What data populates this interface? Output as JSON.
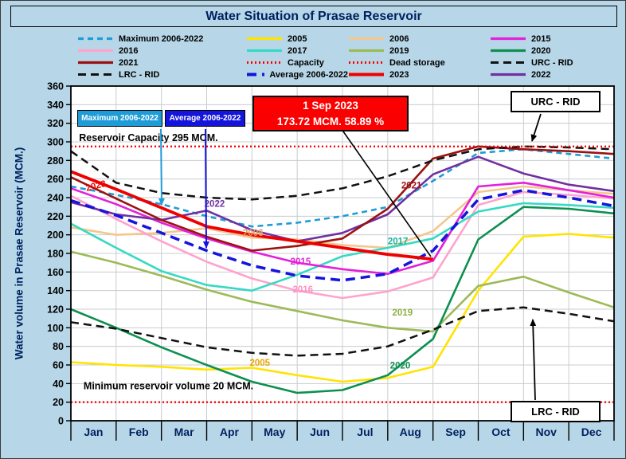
{
  "annotations": {
    "maximum_box": "Maximum 2006-2022",
    "average_box": "Average 2006-2022",
    "current": {
      "date": "1 Sep 2023",
      "value": "173.72 MCM. 58.89 %"
    },
    "urc_label": "URC - RID",
    "lrc_label": "LRC - RID",
    "notes": [
      {
        "text": "Reservoir Capacity 295 MCM.",
        "month": 0.18,
        "mcm": 301
      },
      {
        "text": "Minimum reservoir volume 20 MCM.",
        "month": 0.28,
        "mcm": 34
      }
    ]
  },
  "chart_data": {
    "type": "line",
    "title": "Water Situation of Prasae Reservoir",
    "ylabel": "Water volume in Prasae Reservoir (MCM.)",
    "ylim": [
      0,
      360
    ],
    "y_tick_step": 20,
    "grid": true,
    "x_categories": [
      "Jan",
      "Feb",
      "Mar",
      "Apr",
      "May",
      "Jun",
      "Jul",
      "Aug",
      "Sep",
      "Oct",
      "Nov",
      "Dec"
    ],
    "legend_order": [
      "Maximum 2006-2022",
      "2005",
      "2006",
      "2015",
      "2016",
      "2017",
      "2019",
      "2020",
      "2021",
      "Capacity",
      "Dead storage",
      "URC - RID",
      "LRC - RID",
      "Average 2006-2022",
      "2023",
      "2022"
    ],
    "series": [
      {
        "name": "2005",
        "color": "#ffe400",
        "width": 2.6,
        "values": [
          63,
          60,
          58,
          55,
          57,
          49,
          42,
          46,
          58,
          140,
          198,
          201,
          197
        ]
      },
      {
        "name": "2006",
        "color": "#f3c78e",
        "width": 2.6,
        "values": [
          208,
          200,
          202,
          207,
          197,
          195,
          189,
          186,
          204,
          246,
          252,
          248,
          244
        ]
      },
      {
        "name": "2016",
        "color": "#ffa3cd",
        "width": 2.6,
        "values": [
          242,
          217,
          193,
          171,
          153,
          140,
          132,
          139,
          154,
          232,
          246,
          243,
          239
        ]
      },
      {
        "name": "2017",
        "color": "#36d9c4",
        "width": 2.6,
        "values": [
          212,
          186,
          161,
          146,
          140,
          157,
          177,
          186,
          196,
          225,
          234,
          232,
          229
        ]
      },
      {
        "name": "2019",
        "color": "#9cba58",
        "width": 2.6,
        "values": [
          182,
          170,
          156,
          141,
          128,
          118,
          108,
          100,
          96,
          145,
          155,
          138,
          122
        ]
      },
      {
        "name": "2020",
        "color": "#0e8f50",
        "width": 2.6,
        "values": [
          120,
          100,
          79,
          60,
          42,
          30,
          33,
          49,
          88,
          195,
          230,
          228,
          223
        ]
      },
      {
        "name": "Maximum 2006-2022",
        "color": "#1e9cd7",
        "dash": "7 5",
        "width": 2.6,
        "values": [
          252,
          243,
          233,
          220,
          209,
          213,
          220,
          230,
          258,
          288,
          292,
          287,
          282
        ]
      },
      {
        "name": "2015",
        "color": "#e321d9",
        "width": 2.6,
        "values": [
          250,
          233,
          213,
          196,
          182,
          170,
          163,
          158,
          172,
          252,
          256,
          248,
          240
        ]
      },
      {
        "name": "2022",
        "color": "#7030a0",
        "width": 2.6,
        "values": [
          235,
          222,
          216,
          226,
          205,
          193,
          202,
          222,
          265,
          284,
          266,
          254,
          247
        ]
      },
      {
        "name": "2021",
        "color": "#9c1212",
        "width": 2.6,
        "values": [
          262,
          239,
          216,
          198,
          183,
          188,
          196,
          228,
          282,
          295,
          292,
          290,
          287
        ]
      },
      {
        "name": "URC - RID",
        "color": "#111111",
        "dash": "10 6",
        "width": 2.5,
        "values": [
          290,
          256,
          245,
          240,
          238,
          242,
          250,
          263,
          280,
          292,
          295,
          294,
          292
        ]
      },
      {
        "name": "LRC - RID",
        "color": "#111111",
        "dash": "10 6",
        "width": 2.5,
        "values": [
          106,
          99,
          89,
          79,
          73,
          70,
          72,
          80,
          98,
          118,
          122,
          115,
          107
        ]
      },
      {
        "name": "Capacity",
        "color": "#ff0000",
        "dash": "2 3",
        "width": 2.4,
        "x": [
          0,
          12
        ],
        "values": [
          295,
          295
        ]
      },
      {
        "name": "Dead storage",
        "color": "#ff0000",
        "dash": "2 3",
        "width": 2.4,
        "x": [
          0,
          12
        ],
        "values": [
          20,
          20
        ]
      },
      {
        "name": "Average 2006-2022",
        "color": "#1414dd",
        "dash": "12 7",
        "width": 3.5,
        "values": [
          237,
          221,
          202,
          183,
          167,
          156,
          151,
          158,
          183,
          238,
          248,
          240,
          231
        ]
      },
      {
        "name": "2023",
        "color": "#ee0000",
        "width": 3.8,
        "x": [
          0,
          1,
          2,
          3,
          4,
          5,
          6,
          7,
          8
        ],
        "values": [
          268,
          249,
          229,
          209,
          200,
          193,
          186,
          179,
          173.72
        ]
      }
    ],
    "series_labels": [
      {
        "text": "2023",
        "color": "#ee0000",
        "month": 0.35,
        "mcm": 247,
        "rotate": -14
      },
      {
        "text": "2022",
        "color": "#7030a0",
        "month": 2.95,
        "mcm": 230
      },
      {
        "text": "2006",
        "color": "#df9c55",
        "month": 3.8,
        "mcm": 199
      },
      {
        "text": "2015",
        "color": "#e321d9",
        "month": 4.85,
        "mcm": 168
      },
      {
        "text": "2016",
        "color": "#ff8fc2",
        "month": 4.9,
        "mcm": 138
      },
      {
        "text": "2017",
        "color": "#17b3a3",
        "month": 7.0,
        "mcm": 190
      },
      {
        "text": "2021",
        "color": "#9c1212",
        "month": 7.3,
        "mcm": 250
      },
      {
        "text": "2019",
        "color": "#8fae43",
        "month": 7.1,
        "mcm": 113
      },
      {
        "text": "2005",
        "color": "#e8a400",
        "month": 3.95,
        "mcm": 59
      },
      {
        "text": "2020",
        "color": "#0e8f50",
        "month": 7.05,
        "mcm": 56
      }
    ]
  }
}
